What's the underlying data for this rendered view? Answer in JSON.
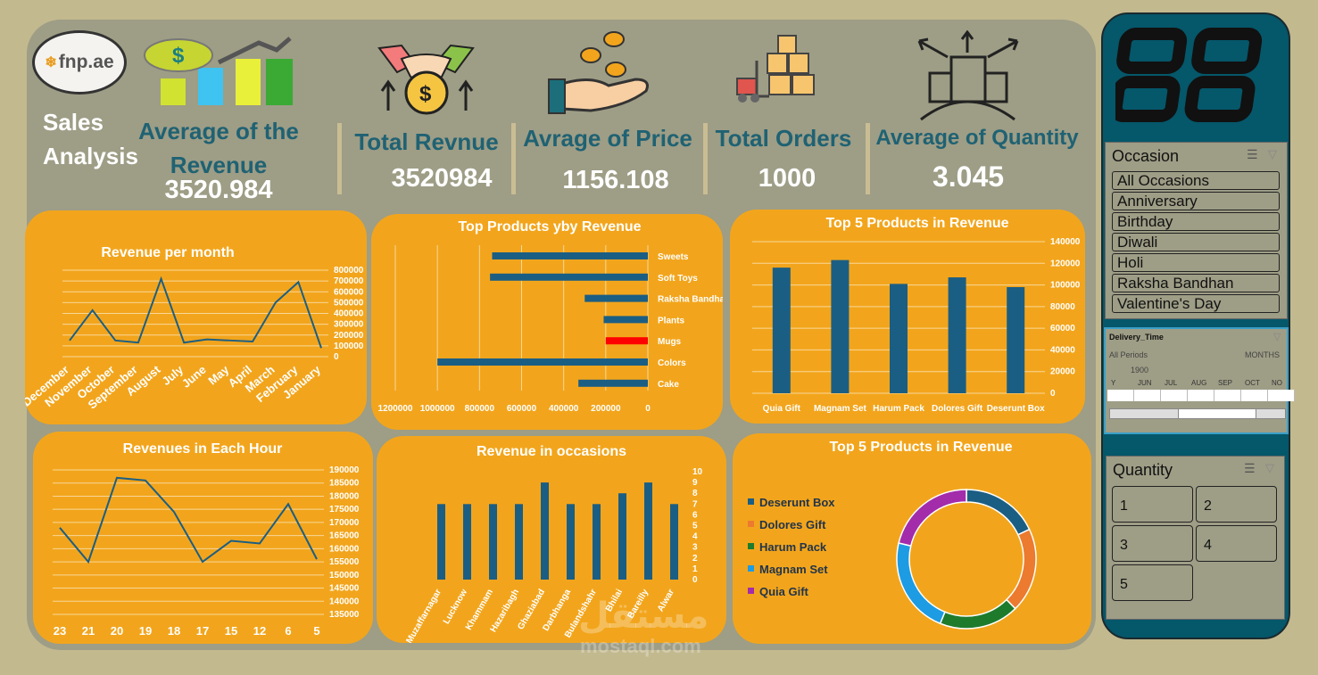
{
  "brand": {
    "logo_text": "fnp.ae",
    "title": "Sales\nAnalysis"
  },
  "kpis": [
    {
      "title": "Average of the Revenue",
      "value": "3520.984"
    },
    {
      "title": "Total Revnue",
      "value": "3520984"
    },
    {
      "title": "Avrage of Price",
      "value": "1156.108"
    },
    {
      "title": "Total Orders",
      "value": "1000"
    },
    {
      "title": "Average of Quantity",
      "value": "3.045"
    }
  ],
  "icons": [
    "dollar-bars-icon",
    "handshake-money-icon",
    "hand-coins-icon",
    "forklift-boxes-icon",
    "global-expansion-icon"
  ],
  "colors": {
    "background": "#c3b98f",
    "panel": "#9e9d86",
    "card": "#f2a51c",
    "kpi_text": "#1f6273",
    "bar": "#1b5e84",
    "highlight": "#ff0000",
    "sidebar": "#05576a"
  },
  "chart_data": [
    {
      "type": "line",
      "title": "Revenue per month",
      "categories": [
        "December",
        "November",
        "October",
        "September",
        "August",
        "July",
        "June",
        "May",
        "April",
        "March",
        "February",
        "January"
      ],
      "values": [
        150000,
        430000,
        150000,
        130000,
        720000,
        130000,
        160000,
        150000,
        140000,
        500000,
        690000,
        80000
      ],
      "ylim": [
        0,
        800000
      ],
      "yticks": [
        "800000",
        "700000",
        "600000",
        "500000",
        "400000",
        "300000",
        "200000",
        "100000",
        "0"
      ],
      "grid": true
    },
    {
      "type": "bar",
      "orientation": "horizontal",
      "title": "Top Products yby Revenue",
      "categories": [
        "Sweets",
        "Soft Toys",
        "Raksha Bandhan",
        "Plants",
        "Mugs",
        "Colors",
        "Cake"
      ],
      "values": [
        740000,
        750000,
        300000,
        210000,
        200000,
        1000000,
        330000
      ],
      "highlight": "Mugs",
      "xlim": [
        0,
        1200000
      ],
      "xticks": [
        "1200000",
        "1000000",
        "800000",
        "600000",
        "400000",
        "200000",
        "0"
      ]
    },
    {
      "type": "bar",
      "title": "Top 5 Products in Revenue",
      "categories": [
        "Quia Gift",
        "Magnam Set",
        "Harum Pack",
        "Dolores Gift",
        "Deserunt Box"
      ],
      "values": [
        116000,
        123000,
        101000,
        107000,
        98000
      ],
      "ylim": [
        0,
        140000
      ],
      "yticks": [
        "140000",
        "120000",
        "100000",
        "80000",
        "60000",
        "40000",
        "20000",
        "0"
      ]
    },
    {
      "type": "line",
      "title": "Revenues in Each Hour",
      "categories": [
        "23",
        "21",
        "20",
        "19",
        "18",
        "17",
        "15",
        "12",
        "6",
        "5"
      ],
      "values": [
        168000,
        155000,
        187000,
        186000,
        174000,
        155000,
        163000,
        162000,
        177000,
        156000
      ],
      "ylim": [
        135000,
        190000
      ],
      "yticks": [
        "190000",
        "185000",
        "180000",
        "175000",
        "170000",
        "165000",
        "160000",
        "155000",
        "150000",
        "145000",
        "140000",
        "135000"
      ],
      "grid": true
    },
    {
      "type": "bar",
      "title": "Revenue in occasions",
      "categories": [
        "Muzaffarnagar",
        "Lucknow",
        "Khammam",
        "Hazaribagh",
        "Ghaziabad",
        "Darbhanga",
        "Bulandshahr",
        "Bhilai",
        "Bareilly",
        "Alwar"
      ],
      "values": [
        7,
        7,
        7,
        7,
        9,
        7,
        7,
        8,
        9,
        7
      ],
      "ylim": [
        0,
        10
      ],
      "yticks": [
        "10",
        "9",
        "8",
        "7",
        "6",
        "5",
        "4",
        "3",
        "2",
        "1",
        "0"
      ]
    },
    {
      "type": "pie",
      "title": "Top 5 Products in Revenue",
      "categories": [
        "Deserunt Box",
        "Dolores Gift",
        "Harum Pack",
        "Magnam Set",
        "Quia Gift"
      ],
      "values": [
        98000,
        107000,
        101000,
        123000,
        116000
      ],
      "colors": [
        "#1b5e84",
        "#ec7a2f",
        "#1e7b2c",
        "#1d9be3",
        "#a32cab"
      ],
      "legend": "left"
    }
  ],
  "slicers": {
    "occasion": {
      "title": "Occasion",
      "items": [
        "All Occasions",
        "Anniversary",
        "Birthday",
        "Diwali",
        "Holi",
        "Raksha Bandhan",
        "Valentine's Day"
      ]
    },
    "delivery": {
      "title": "Delivery_Time",
      "all": "All Periods",
      "unit": "MONTHS",
      "year": "1900",
      "months": [
        "Y",
        "JUN",
        "JUL",
        "AUG",
        "SEP",
        "OCT",
        "NO"
      ]
    },
    "quantity": {
      "title": "Quantity",
      "items": [
        "1",
        "2",
        "3",
        "4",
        "5"
      ]
    }
  },
  "watermark": {
    "arabic": "مستقل",
    "latin": "mostaql.com"
  }
}
